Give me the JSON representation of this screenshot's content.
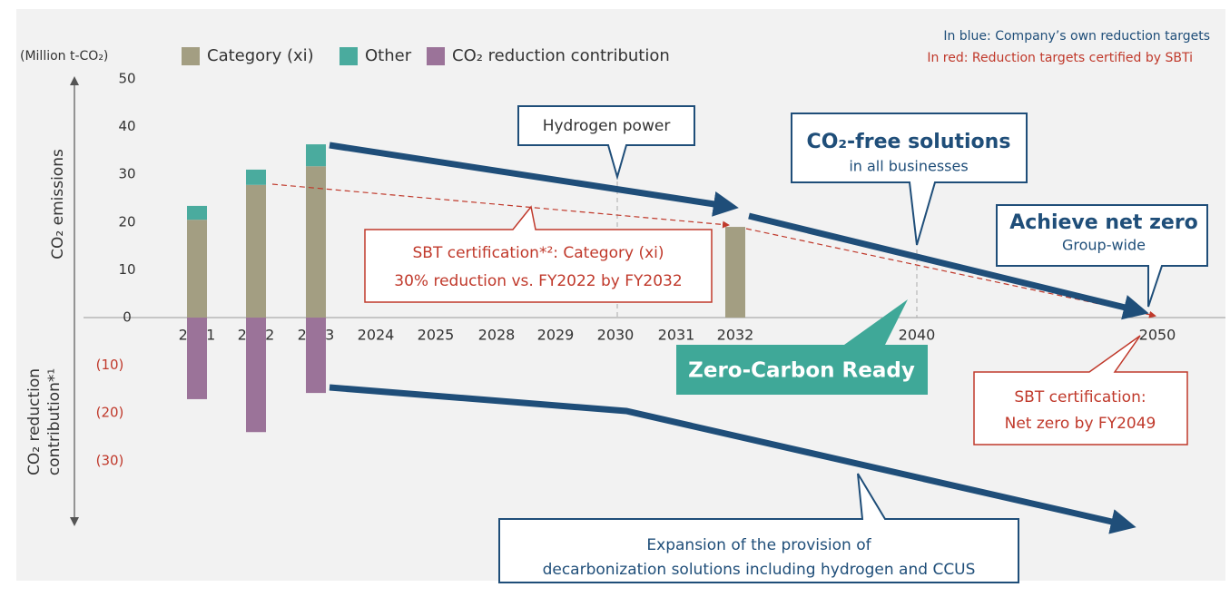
{
  "chart_data": {
    "type": "bar",
    "stacked": true,
    "y_unit": "(Million t-CO₂)",
    "ylabel": "CO₂ emissions",
    "y_negative_label": [
      "CO₂ reduction",
      "contribution*¹"
    ],
    "notes": [
      "In blue: Company’s own reduction targets",
      "In red:  Reduction targets certified by SBTi"
    ],
    "categories": [
      "2021",
      "2022",
      "2023",
      "2024",
      "2025",
      "2028",
      "2029",
      "2030",
      "2031",
      "2032",
      "2040",
      "2050"
    ],
    "series": [
      {
        "name": "Category (xi)",
        "color": "#a39e82",
        "values": [
          20.5,
          27.8,
          31.7,
          null,
          null,
          null,
          null,
          null,
          null,
          19.0,
          null,
          null
        ]
      },
      {
        "name": "Other",
        "color": "#4aab9e",
        "values": [
          2.9,
          3.2,
          4.6,
          null,
          null,
          null,
          null,
          null,
          null,
          null,
          null,
          null
        ]
      },
      {
        "name": "CO₂ reduction contribution",
        "color": "#9b7399",
        "values": [
          -17.1,
          -24.0,
          -15.8,
          null,
          null,
          null,
          null,
          null,
          null,
          null,
          null,
          null
        ]
      }
    ],
    "ylim": [
      -43,
      50
    ],
    "yticks": [
      {
        "value": -30,
        "label": "(30)"
      },
      {
        "value": -20,
        "label": "(20)"
      },
      {
        "value": -10,
        "label": "(10)"
      },
      0,
      10,
      20,
      30,
      40,
      50
    ],
    "grid": false,
    "annotations": {
      "hydrogen": [
        "Hydrogen power"
      ],
      "co2_free": [
        "CO₂-free solutions",
        "in all businesses"
      ],
      "net_zero": [
        "Achieve net zero",
        "Group-wide"
      ],
      "sbt_category": [
        "SBT certification*²: Category (xi)",
        "30% reduction vs. FY2022 by FY2032"
      ],
      "zero_carbon": [
        "Zero-Carbon Ready"
      ],
      "sbt_net_zero": [
        "SBT certification:",
        "Net zero by FY2049"
      ],
      "expansion": [
        "Expansion of the provision of",
        "decarbonization solutions including hydrogen and CCUS"
      ]
    }
  }
}
